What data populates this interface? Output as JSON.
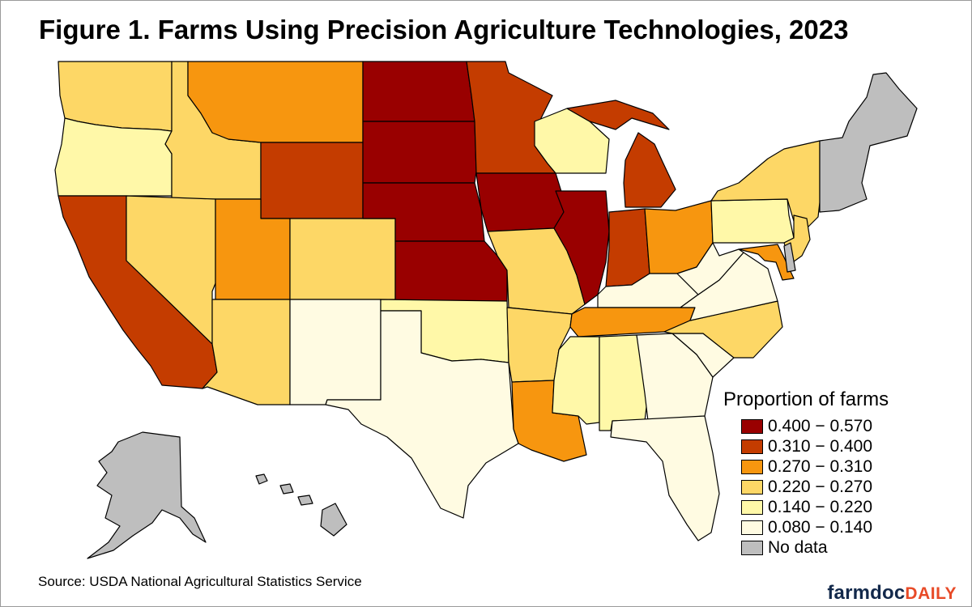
{
  "title": "Figure 1. Farms Using Precision Agriculture Technologies, 2023",
  "source": "Source: USDA National Agricultural Statistics Service",
  "brand": {
    "part1": "farmdoc",
    "part2": "DAILY"
  },
  "legend": {
    "title": "Proportion of farms",
    "items": [
      {
        "label": "0.400 − 0.570",
        "color": "#990000"
      },
      {
        "label": "0.310 − 0.400",
        "color": "#c43c00"
      },
      {
        "label": "0.270 − 0.310",
        "color": "#f7960f"
      },
      {
        "label": "0.220 − 0.270",
        "color": "#fdd766"
      },
      {
        "label": "0.140 − 0.220",
        "color": "#fff8a8"
      },
      {
        "label": "0.080 − 0.140",
        "color": "#fffbe2"
      },
      {
        "label": "No data",
        "color": "#bebebe"
      }
    ]
  },
  "states": {
    "WA": {
      "range": "0.220 − 0.270",
      "color": "#fdd766"
    },
    "OR": {
      "range": "0.140 − 0.220",
      "color": "#fff8a8"
    },
    "CA": {
      "range": "0.310 − 0.400",
      "color": "#c43c00"
    },
    "ID": {
      "range": "0.220 − 0.270",
      "color": "#fdd766"
    },
    "NV": {
      "range": "0.220 − 0.270",
      "color": "#fdd766"
    },
    "MT": {
      "range": "0.270 − 0.310",
      "color": "#f7960f"
    },
    "WY": {
      "range": "0.310 − 0.400",
      "color": "#c43c00"
    },
    "UT": {
      "range": "0.270 − 0.310",
      "color": "#f7960f"
    },
    "CO": {
      "range": "0.220 − 0.270",
      "color": "#fdd766"
    },
    "AZ": {
      "range": "0.220 − 0.270",
      "color": "#fdd766"
    },
    "NM": {
      "range": "0.080 − 0.140",
      "color": "#fffbe2"
    },
    "ND": {
      "range": "0.400 − 0.570",
      "color": "#990000"
    },
    "SD": {
      "range": "0.400 − 0.570",
      "color": "#990000"
    },
    "NE": {
      "range": "0.400 − 0.570",
      "color": "#990000"
    },
    "KS": {
      "range": "0.400 − 0.570",
      "color": "#990000"
    },
    "OK": {
      "range": "0.140 − 0.220",
      "color": "#fff8a8"
    },
    "TX": {
      "range": "0.080 − 0.140",
      "color": "#fffbe2"
    },
    "MN": {
      "range": "0.310 − 0.400",
      "color": "#c43c00"
    },
    "IA": {
      "range": "0.400 − 0.570",
      "color": "#990000"
    },
    "MO": {
      "range": "0.220 − 0.270",
      "color": "#fdd766"
    },
    "AR": {
      "range": "0.220 − 0.270",
      "color": "#fdd766"
    },
    "LA": {
      "range": "0.270 − 0.310",
      "color": "#f7960f"
    },
    "WI": {
      "range": "0.140 − 0.220",
      "color": "#fff8a8"
    },
    "IL": {
      "range": "0.400 − 0.570",
      "color": "#990000"
    },
    "MI": {
      "range": "0.310 − 0.400",
      "color": "#c43c00"
    },
    "IN": {
      "range": "0.310 − 0.400",
      "color": "#c43c00"
    },
    "OH": {
      "range": "0.270 − 0.310",
      "color": "#f7960f"
    },
    "KY": {
      "range": "0.080 − 0.140",
      "color": "#fffbe2"
    },
    "TN": {
      "range": "0.270 − 0.310",
      "color": "#f7960f"
    },
    "MS": {
      "range": "0.140 − 0.220",
      "color": "#fff8a8"
    },
    "AL": {
      "range": "0.140 − 0.220",
      "color": "#fff8a8"
    },
    "GA": {
      "range": "0.080 − 0.140",
      "color": "#fffbe2"
    },
    "FL": {
      "range": "0.080 − 0.140",
      "color": "#fffbe2"
    },
    "SC": {
      "range": "0.080 − 0.140",
      "color": "#fffbe2"
    },
    "NC": {
      "range": "0.220 − 0.270",
      "color": "#fdd766"
    },
    "VA": {
      "range": "0.080 − 0.140",
      "color": "#fffbe2"
    },
    "WV": {
      "range": "0.080 − 0.140",
      "color": "#fffbe2"
    },
    "PA": {
      "range": "0.140 − 0.220",
      "color": "#fff8a8"
    },
    "NY": {
      "range": "0.220 − 0.270",
      "color": "#fdd766"
    },
    "NJ": {
      "range": "0.220 − 0.270",
      "color": "#fdd766"
    },
    "MD": {
      "range": "0.270 − 0.310",
      "color": "#f7960f"
    },
    "DE": {
      "range": "No data",
      "color": "#bebebe"
    },
    "NE_REGION": {
      "range": "No data",
      "color": "#bebebe"
    },
    "AK": {
      "range": "No data",
      "color": "#bebebe"
    },
    "HI": {
      "range": "No data",
      "color": "#bebebe"
    }
  }
}
